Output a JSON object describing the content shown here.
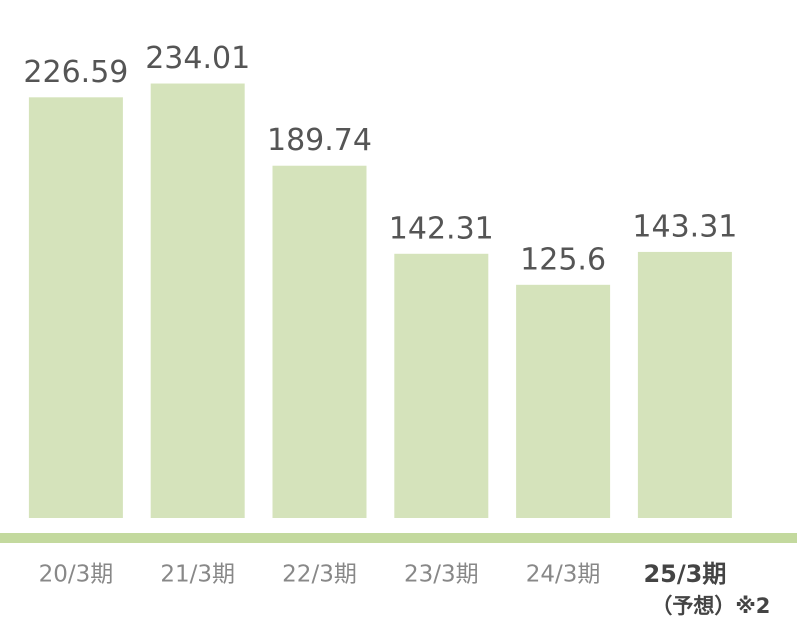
{
  "chart_data": {
    "type": "bar",
    "categories": [
      "20/3期",
      "21/3期",
      "22/3期",
      "23/3期",
      "24/3期",
      "25/3期"
    ],
    "forecast_label": "（予想）※2",
    "values": [
      226.59,
      234.01,
      189.74,
      142.31,
      125.6,
      143.31
    ],
    "color": "#d5e3bb",
    "baseline_color": "#c3d99e",
    "ylim": [
      0,
      279
    ]
  }
}
